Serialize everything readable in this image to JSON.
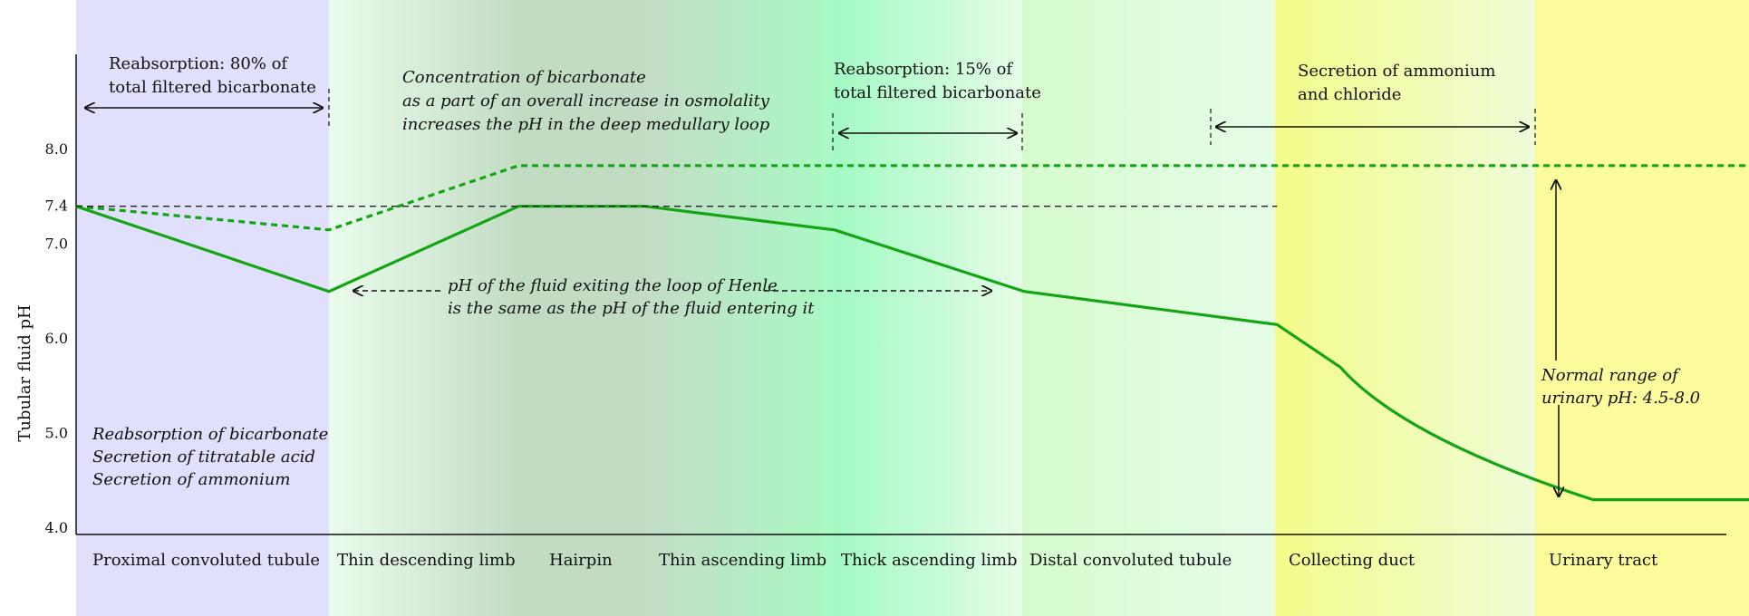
{
  "chart_data": {
    "type": "line",
    "ylabel": "Tubular fluid pH",
    "yticks": [
      "4.0",
      "5.0",
      "6.0",
      "7.0",
      "7.4",
      "8.0"
    ],
    "ylim": [
      4.0,
      9.0
    ],
    "segments": [
      {
        "name": "Proximal convoluted tubule",
        "color": "#e0e0fc"
      },
      {
        "name": "Thin descending limb",
        "color": "#dff0e0"
      },
      {
        "name": "Hairpin",
        "color": "#c4dcc6"
      },
      {
        "name": "Thin ascending limb",
        "color": "#c4ecc8"
      },
      {
        "name": "Thick ascending limb",
        "color": "#bff9d4"
      },
      {
        "name": "Distal convoluted tubule",
        "color": "#e0fce0"
      },
      {
        "name": "Collecting duct",
        "color": "#f6fcc4"
      },
      {
        "name": "Urinary tract",
        "color": "#fcfc9c"
      }
    ],
    "series": [
      {
        "name": "",
        "style": "solid",
        "color": "#14a514",
        "x": [
          0,
          1,
          1.75,
          2.25,
          3,
          3.75,
          4.75,
          5.0,
          5.5,
          6.0,
          6.75
        ],
        "y": [
          7.4,
          6.5,
          7.4,
          7.4,
          7.15,
          6.5,
          6.15,
          5.7,
          4.9,
          4.3,
          4.3
        ]
      },
      {
        "name": "",
        "style": "dotted",
        "color": "#14a514",
        "x": [
          0,
          1,
          1.75,
          6.75
        ],
        "y": [
          7.4,
          7.15,
          7.83,
          7.83
        ]
      },
      {
        "name": "",
        "style": "dashed-reference",
        "color": "#222222",
        "x": [
          0,
          4.75
        ],
        "y": [
          7.4,
          7.4
        ]
      }
    ]
  },
  "annotations": {
    "pct_reabsorption": [
      "Reabsorption: 80% of",
      "total filtered bicarbonate"
    ],
    "concentration": [
      "Concentration of bicarbonate",
      "as a part of an overall increase in osmolality",
      "increases the pH in the deep medullary loop"
    ],
    "tal_reabsorption": [
      "Reabsorption: 15% of",
      "total filtered bicarbonate"
    ],
    "secretion": [
      "Secretion of ammonium",
      "and chloride"
    ],
    "loop_ph": [
      "pH of the fluid exiting the loop of Henle",
      "is the same as the pH of the fluid entering it"
    ],
    "proximal_functions": [
      "Reabsorption of bicarbonate",
      "Secretion of titratable acid",
      "Secretion of ammonium"
    ],
    "normal_range": [
      "Normal range of",
      "urinary pH: 4.5-8.0"
    ]
  }
}
